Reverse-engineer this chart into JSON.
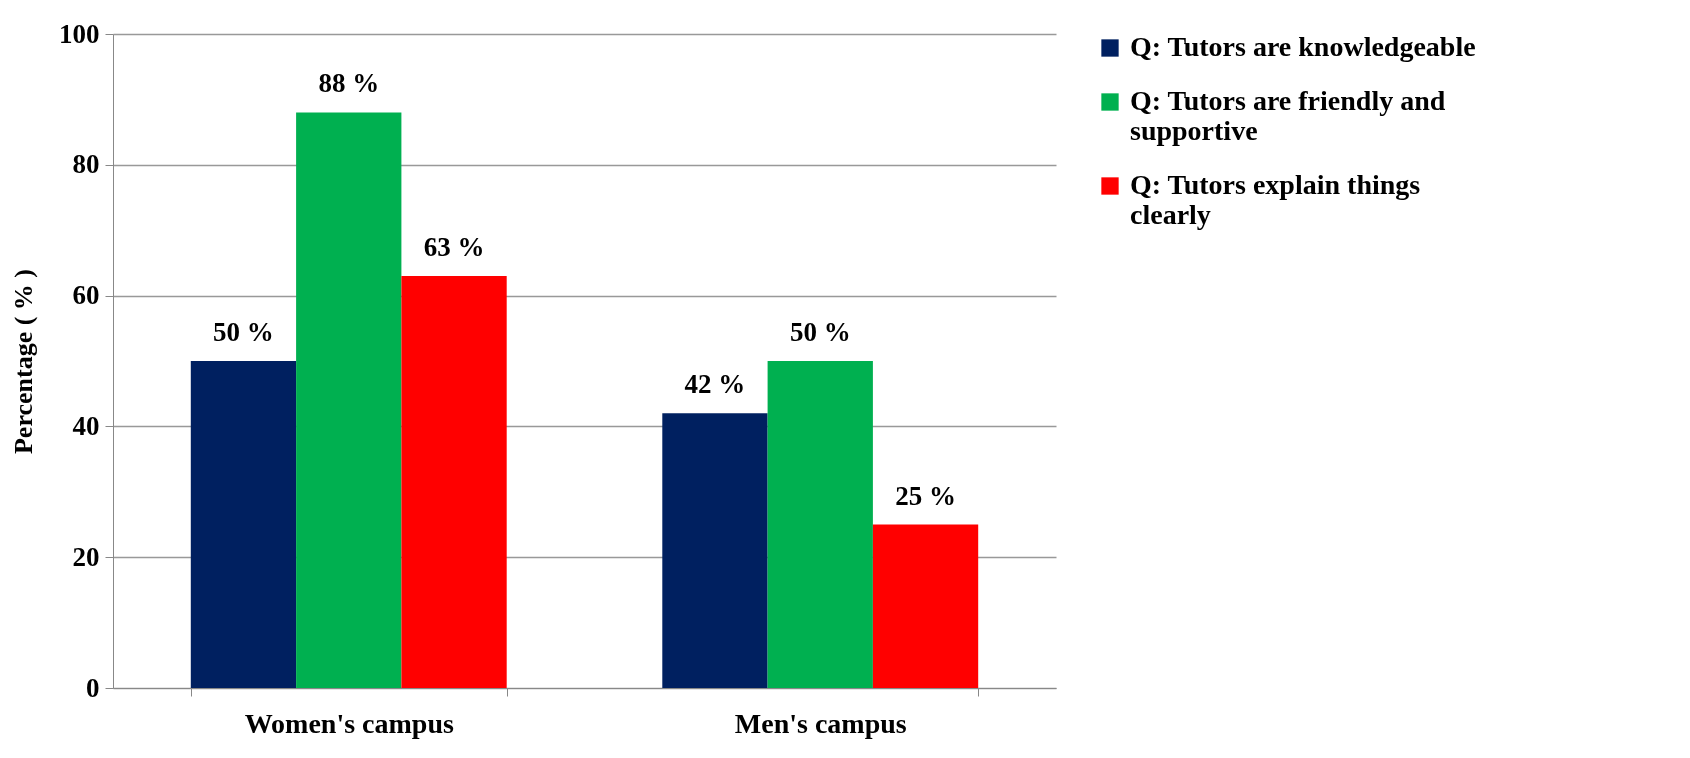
{
  "chart_data": {
    "type": "bar",
    "ylabel": "Percentage ( % )",
    "categories": [
      "Women's campus",
      "Men's campus"
    ],
    "series": [
      {
        "name": "Q: Tutors are knowledgeable",
        "color": "#002060",
        "values": [
          50,
          42
        ],
        "value_labels": [
          "50 %",
          "42 %"
        ]
      },
      {
        "name": "Q: Tutors are friendly and supportive",
        "color": "#00b050",
        "values": [
          88,
          50
        ],
        "value_labels": [
          "88 %",
          "50 %"
        ]
      },
      {
        "name": "Q: Tutors explain things clearly",
        "color": "#ff0000",
        "values": [
          63,
          25
        ],
        "value_labels": [
          "63 %",
          "25 %"
        ]
      }
    ],
    "ylim": [
      0,
      100
    ],
    "yticks": [
      0,
      20,
      40,
      60,
      80,
      100
    ],
    "grid": "y",
    "legend": "right"
  }
}
